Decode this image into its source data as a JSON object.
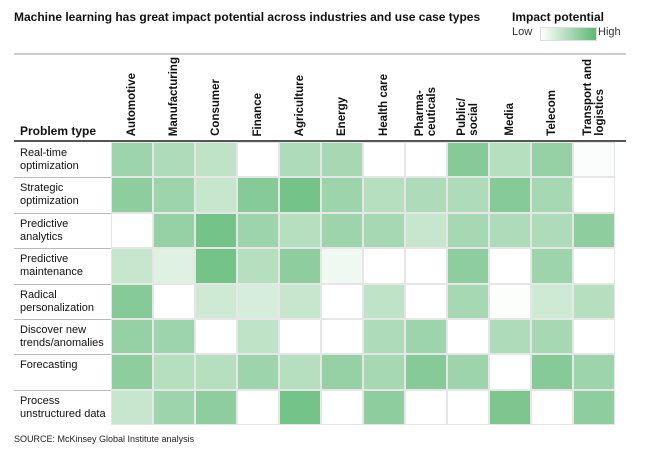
{
  "chart_data": {
    "type": "heatmap",
    "title": "Machine learning has great impact potential across industries and use case types",
    "legend": {
      "title": "Impact potential",
      "low": "Low",
      "high": "High",
      "placement": "top-right"
    },
    "row_header": "Problem type",
    "columns": [
      "Automotive",
      "Manufacturing",
      "Consumer",
      "Finance",
      "Agriculture",
      "Energy",
      "Health care",
      "Pharma-\nceuticals",
      "Public/\nsocial",
      "Media",
      "Telecom",
      "Transport and\nlogistics"
    ],
    "rows": [
      "Real-time\noptimization",
      "Strategic\noptimization",
      "Predictive\nanalytics",
      "Predictive\nmaintenance",
      "Radical\npersonalization",
      "Discover new\ntrends/anomalies",
      "Forecasting",
      "Process\nunstructured data"
    ],
    "values": [
      [
        0.6,
        0.5,
        0.4,
        0,
        0.5,
        0.55,
        0,
        0,
        0.75,
        0.45,
        0.65,
        0.03
      ],
      [
        0.7,
        0.6,
        0.35,
        0.75,
        0.85,
        0.6,
        0.45,
        0.5,
        0.5,
        0.75,
        0.55,
        0
      ],
      [
        0,
        0.65,
        0.85,
        0.6,
        0.45,
        0.6,
        0.55,
        0.35,
        0.55,
        0.5,
        0.5,
        0.7
      ],
      [
        0.35,
        0.2,
        0.85,
        0.45,
        0.7,
        0.1,
        0,
        0,
        0.7,
        0,
        0.6,
        0
      ],
      [
        0.75,
        0,
        0.3,
        0.25,
        0.35,
        0,
        0.4,
        0,
        0.55,
        0.02,
        0.3,
        0.45
      ],
      [
        0.65,
        0.6,
        0,
        0.4,
        0,
        0,
        0.5,
        0.6,
        0,
        0.5,
        0.55,
        0
      ],
      [
        0.7,
        0.45,
        0.45,
        0.6,
        0.45,
        0.65,
        0.55,
        0.75,
        0.6,
        0,
        0.75,
        0.6
      ],
      [
        0.35,
        0.6,
        0.7,
        0,
        0.85,
        0,
        0.7,
        0,
        0,
        0.8,
        0,
        0.7
      ]
    ],
    "value_range": [
      0,
      1
    ],
    "colors": {
      "low": "#ffffff",
      "high": "#5cb874"
    }
  },
  "source": "SOURCE:  McKinsey Global Institute analysis"
}
